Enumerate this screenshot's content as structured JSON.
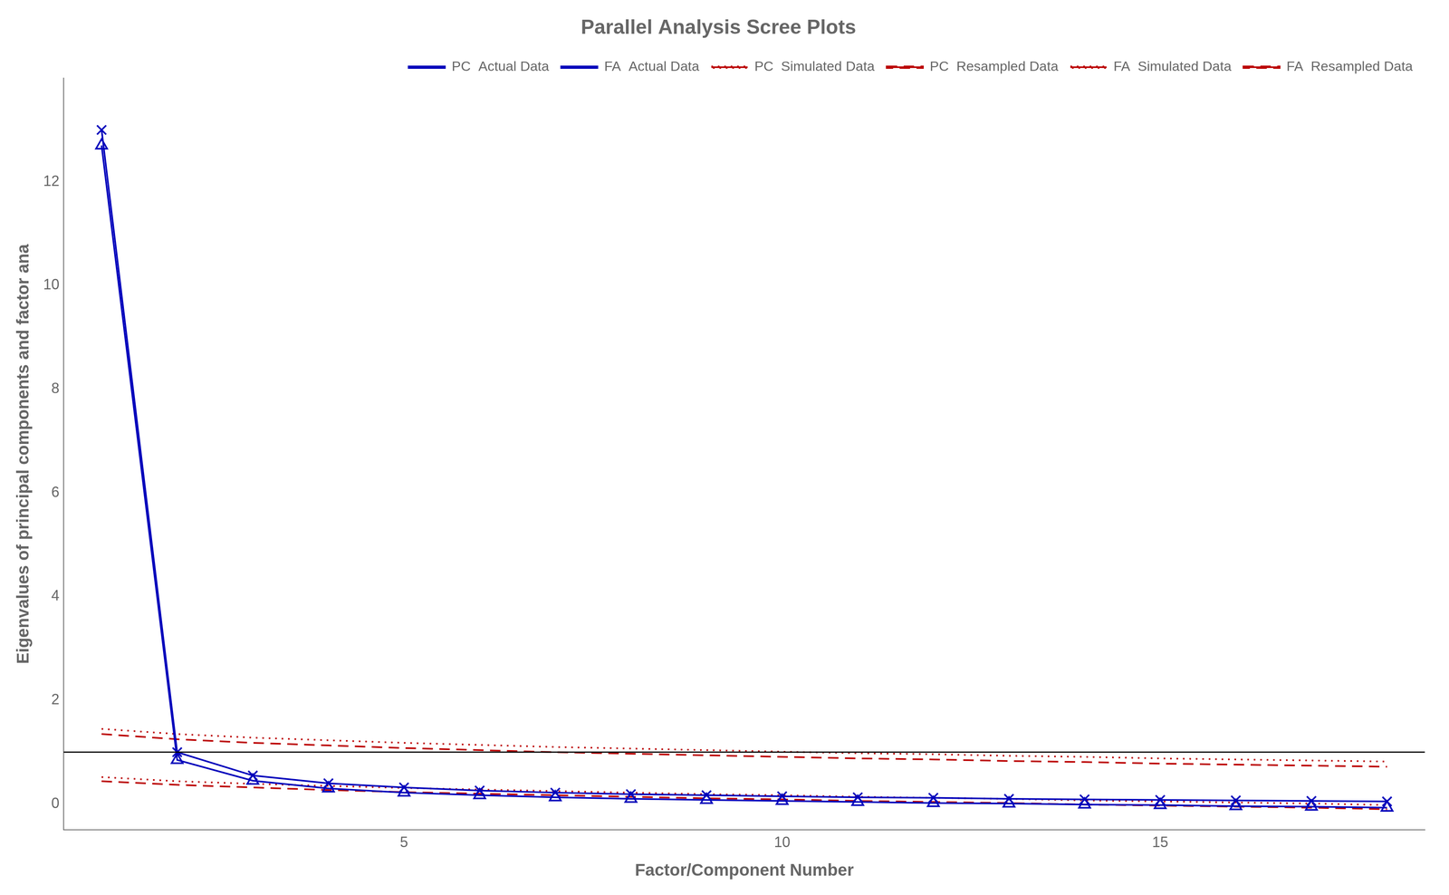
{
  "chart_data": {
    "type": "line",
    "title": "Parallel Analysis Scree Plots",
    "x_label": "Factor/Component Number",
    "y_label": "Eigenvalues of principal components and factor ana",
    "x": [
      1,
      2,
      3,
      4,
      5,
      6,
      7,
      8,
      9,
      10,
      11,
      12,
      13,
      14,
      15,
      16,
      17,
      18
    ],
    "series": [
      {
        "name": "PC  Actual Data",
        "color": "#0000BB",
        "marker": "x",
        "line_style": "solid",
        "values": [
          13.0,
          1.0,
          0.55,
          0.4,
          0.32,
          0.26,
          0.22,
          0.19,
          0.17,
          0.15,
          0.13,
          0.12,
          0.1,
          0.09,
          0.08,
          0.07,
          0.06,
          0.05
        ]
      },
      {
        "name": "PC  Simulated Data",
        "color": "#BB0000",
        "marker": "none",
        "line_style": "dotted",
        "values": [
          1.45,
          1.35,
          1.28,
          1.23,
          1.18,
          1.14,
          1.1,
          1.07,
          1.04,
          1.01,
          0.98,
          0.96,
          0.93,
          0.91,
          0.88,
          0.86,
          0.84,
          0.82
        ]
      },
      {
        "name": "PC  Resampled Data",
        "color": "#BB0000",
        "marker": "none",
        "line_style": "dashed",
        "values": [
          1.35,
          1.25,
          1.18,
          1.13,
          1.08,
          1.04,
          1.0,
          0.97,
          0.94,
          0.91,
          0.88,
          0.86,
          0.83,
          0.81,
          0.78,
          0.76,
          0.74,
          0.72
        ]
      },
      {
        "name": "FA  Actual Data",
        "color": "#0000BB",
        "marker": "triangle",
        "line_style": "solid",
        "values": [
          12.7,
          0.85,
          0.45,
          0.3,
          0.22,
          0.17,
          0.13,
          0.1,
          0.08,
          0.06,
          0.04,
          0.02,
          0.01,
          -0.01,
          -0.02,
          -0.04,
          -0.05,
          -0.07
        ]
      },
      {
        "name": "FA  Simulated Data",
        "color": "#BB0000",
        "marker": "none",
        "line_style": "dotted",
        "values": [
          0.52,
          0.44,
          0.39,
          0.35,
          0.31,
          0.28,
          0.25,
          0.22,
          0.19,
          0.17,
          0.14,
          0.12,
          0.1,
          0.07,
          0.05,
          0.03,
          0.01,
          -0.02
        ]
      },
      {
        "name": "FA  Resampled Data",
        "color": "#BB0000",
        "marker": "none",
        "line_style": "dashed",
        "values": [
          0.44,
          0.37,
          0.32,
          0.27,
          0.23,
          0.2,
          0.17,
          0.14,
          0.11,
          0.09,
          0.06,
          0.04,
          0.02,
          -0.01,
          -0.03,
          -0.05,
          -0.07,
          -0.1
        ]
      }
    ],
    "hline": 1.0,
    "xlim": [
      0.5,
      18.5
    ],
    "xticks": [
      5,
      10,
      15
    ],
    "ylim": [
      -0.5,
      14.0
    ],
    "yticks": [
      0,
      2,
      4,
      6,
      8,
      10,
      12
    ],
    "grid": false,
    "legend": "upper right"
  }
}
